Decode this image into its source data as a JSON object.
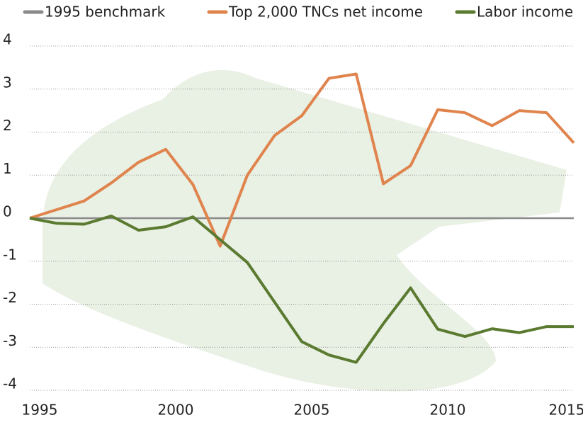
{
  "chart_data": {
    "type": "line",
    "x": [
      1995,
      1996,
      1997,
      1998,
      1999,
      2000,
      2001,
      2002,
      2003,
      2004,
      2005,
      2006,
      2007,
      2008,
      2009,
      2010,
      2011,
      2012,
      2013,
      2014,
      2015
    ],
    "series": [
      {
        "name": "1995 benchmark",
        "color": "#8a8a8a",
        "values": [
          0,
          0,
          0,
          0,
          0,
          0,
          0,
          0,
          0,
          0,
          0,
          0,
          0,
          0,
          0,
          0,
          0,
          0,
          0,
          0,
          0
        ]
      },
      {
        "name": "Top 2,000 TNCs net income",
        "color": "#e0844e",
        "values": [
          0,
          0.2,
          0.4,
          0.82,
          1.3,
          1.6,
          0.78,
          -0.65,
          1.0,
          1.92,
          2.38,
          3.25,
          3.35,
          0.8,
          1.22,
          2.52,
          2.45,
          2.15,
          2.5,
          2.45,
          1.75
        ]
      },
      {
        "name": "Labor income",
        "color": "#5a7a30",
        "values": [
          0,
          -0.12,
          -0.14,
          0.05,
          -0.28,
          -0.2,
          0.03,
          -0.5,
          -1.03,
          -1.95,
          -2.87,
          -3.18,
          -3.35,
          -2.45,
          -1.62,
          -2.58,
          -2.75,
          -2.57,
          -2.66,
          -2.52,
          -2.52
        ]
      }
    ],
    "xlim": [
      1995,
      2015
    ],
    "xticks": [
      1995,
      2000,
      2005,
      2010,
      2015
    ],
    "ylim": [
      -4,
      4
    ],
    "yticks": [
      -4,
      -3,
      -2,
      -1,
      0,
      1,
      2,
      3,
      4
    ],
    "grid": true,
    "legend": "top"
  }
}
